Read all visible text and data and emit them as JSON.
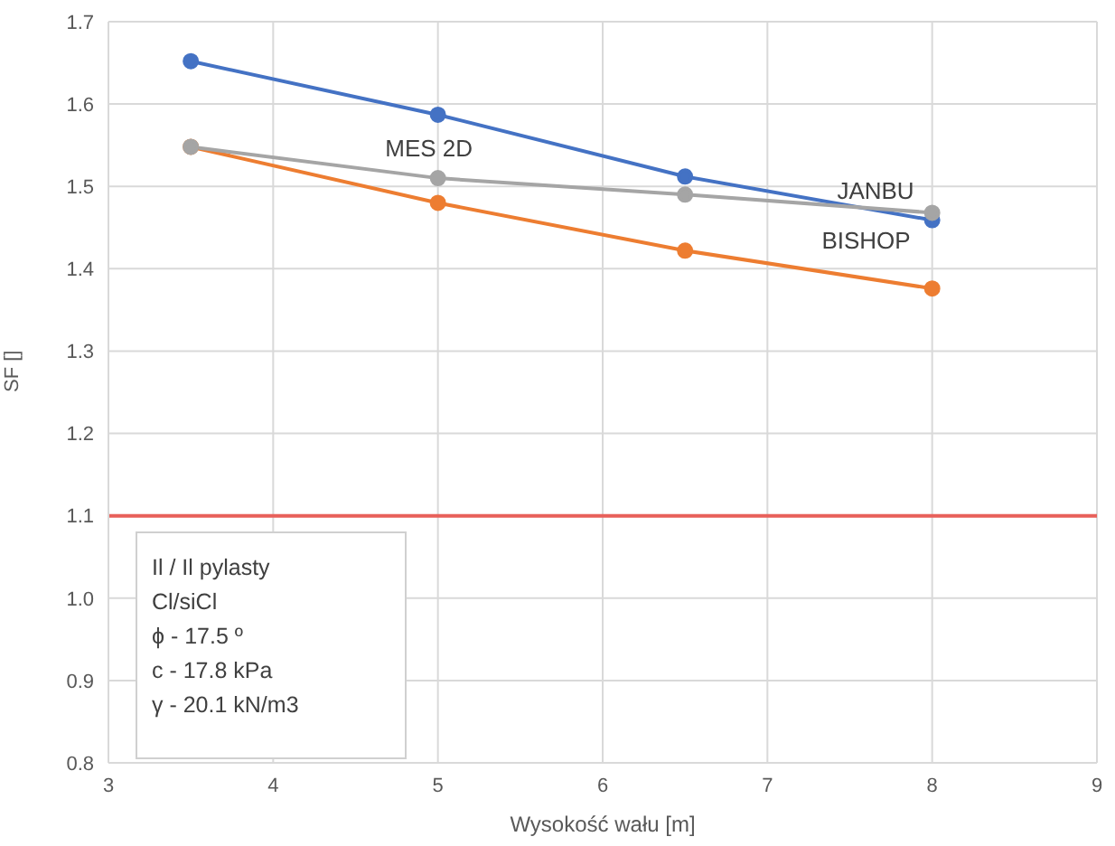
{
  "chart_data": {
    "type": "line",
    "xlabel": "Wysokość wału [m]",
    "ylabel": "SF []",
    "x": [
      3.5,
      5,
      6.5,
      8
    ],
    "series": [
      {
        "name": "JANBU",
        "color": "#4472c4",
        "values": [
          1.652,
          1.587,
          1.512,
          1.459
        ]
      },
      {
        "name": "MES 2D",
        "color": "#a5a5a5",
        "values": [
          1.548,
          1.51,
          1.49,
          1.468
        ]
      },
      {
        "name": "BISHOP",
        "color": "#ed7d31",
        "values": [
          1.548,
          1.48,
          1.422,
          1.376
        ]
      }
    ],
    "xlim": [
      3,
      9
    ],
    "xticks": [
      3,
      4,
      5,
      6,
      7,
      8,
      9
    ],
    "ylim": [
      0.8,
      1.7
    ],
    "yticks": [
      0.8,
      0.9,
      {
        "value": 1,
        "label": "1.0"
      },
      1.1,
      1.2,
      1.3,
      1.4,
      1.5,
      1.6,
      1.7
    ],
    "ref_lines": [
      {
        "axis": "y",
        "value": 1.1,
        "color": "#e8605a"
      }
    ],
    "annotations": [
      "Il / Il pylasty",
      "Cl/siCl",
      "ϕ - 17.5 º",
      "c - 17.8 kPa",
      "γ - 20.1 kN/m3"
    ],
    "grid": true,
    "marker": "circle",
    "line_style": "solid"
  }
}
